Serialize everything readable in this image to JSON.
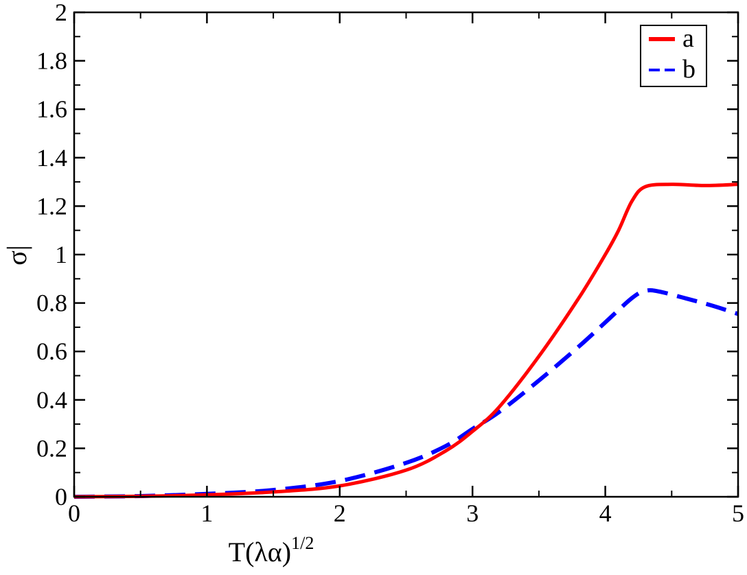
{
  "chart_data": {
    "type": "line",
    "title": "",
    "xlabel": {
      "base": "T(λα)",
      "sup": "1/2"
    },
    "ylabel": "σ|",
    "xlim": [
      0,
      5
    ],
    "ylim": [
      0,
      2
    ],
    "x_ticks": [
      "0",
      "1",
      "2",
      "3",
      "4",
      "5"
    ],
    "y_ticks": [
      "0",
      "0.2",
      "0.4",
      "0.6",
      "0.8",
      "1",
      "1.2",
      "1.4",
      "1.6",
      "1.8",
      "2"
    ],
    "grid": false,
    "legend_position": "top-right",
    "series": [
      {
        "name": "a",
        "color": "#ff0000",
        "style": "solid",
        "x": [
          0,
          0.5,
          1,
          1.5,
          2,
          2.5,
          2.8,
          3,
          3.2,
          3.5,
          3.8,
          4,
          4.1,
          4.2,
          4.3,
          4.5,
          4.75,
          5
        ],
        "y": [
          0,
          0.002,
          0.008,
          0.02,
          0.045,
          0.11,
          0.19,
          0.27,
          0.37,
          0.58,
          0.82,
          1.0,
          1.1,
          1.22,
          1.28,
          1.29,
          1.285,
          1.29
        ]
      },
      {
        "name": "b",
        "color": "#0000ff",
        "style": "dashed",
        "x": [
          0,
          0.5,
          1,
          1.5,
          2,
          2.5,
          2.8,
          3,
          3.2,
          3.5,
          3.8,
          4,
          4.2,
          4.3,
          4.4,
          4.6,
          4.8,
          5
        ],
        "y": [
          0,
          0.003,
          0.012,
          0.028,
          0.065,
          0.14,
          0.21,
          0.28,
          0.35,
          0.48,
          0.62,
          0.72,
          0.82,
          0.85,
          0.848,
          0.82,
          0.79,
          0.755
        ]
      }
    ]
  }
}
